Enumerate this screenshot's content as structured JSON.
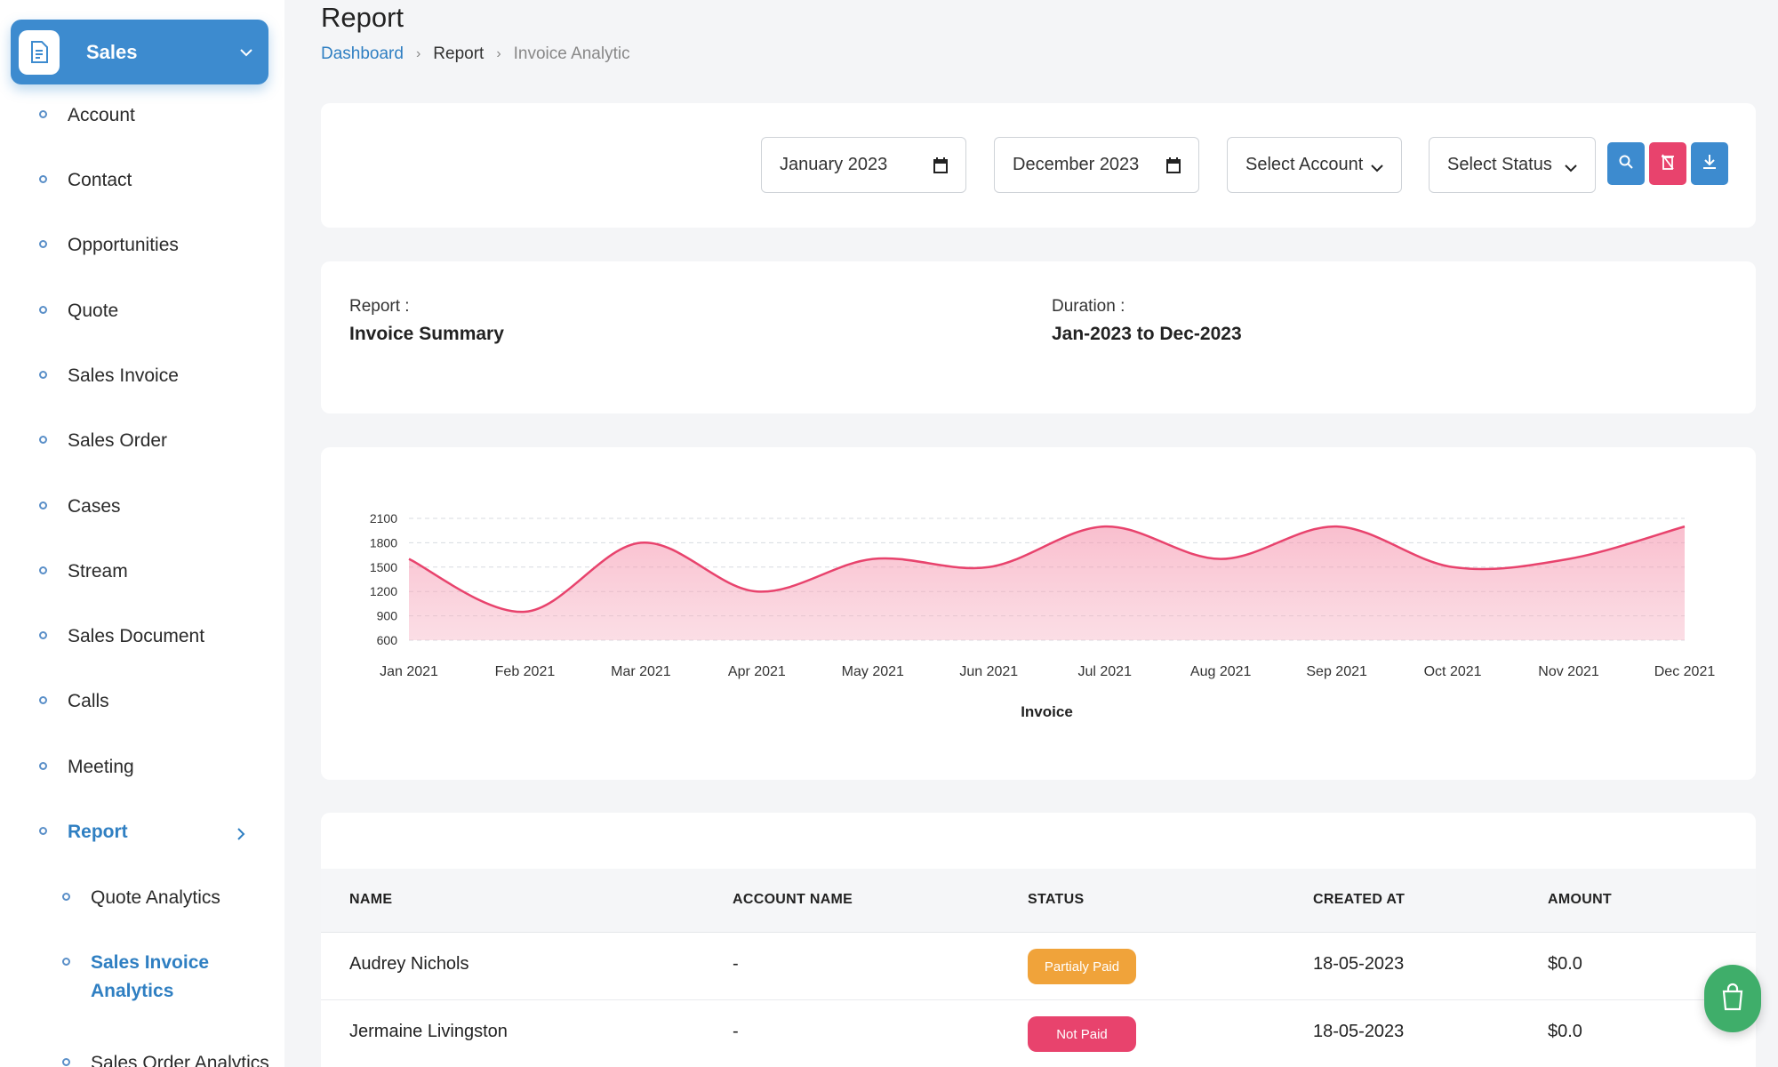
{
  "sidebar": {
    "module": "Sales",
    "items": [
      {
        "label": "Account"
      },
      {
        "label": "Contact"
      },
      {
        "label": "Opportunities"
      },
      {
        "label": "Quote"
      },
      {
        "label": "Sales Invoice"
      },
      {
        "label": "Sales Order"
      },
      {
        "label": "Cases"
      },
      {
        "label": "Stream"
      },
      {
        "label": "Sales Document"
      },
      {
        "label": "Calls"
      },
      {
        "label": "Meeting"
      },
      {
        "label": "Report"
      }
    ],
    "report_sub": [
      {
        "label": "Quote Analytics"
      },
      {
        "label": "Sales Invoice Analytics"
      },
      {
        "label": "Sales Order Analytics"
      }
    ],
    "accent": "#3d8bcf"
  },
  "header": {
    "title": "Report",
    "breadcrumb": [
      "Dashboard",
      "Report",
      "Invoice Analytic"
    ]
  },
  "filters": {
    "start_month": "January 2023",
    "end_month": "December 2023",
    "account_select": "Select Account",
    "status_select": "Select Status"
  },
  "summary": {
    "report_label": "Report :",
    "report_value": "Invoice Summary",
    "duration_label": "Duration :",
    "duration_value": "Jan-2023 to Dec-2023"
  },
  "chart_data": {
    "type": "area",
    "x": [
      "Jan 2021",
      "Feb 2021",
      "Mar 2021",
      "Apr 2021",
      "May 2021",
      "Jun 2021",
      "Jul 2021",
      "Aug 2021",
      "Sep 2021",
      "Oct 2021",
      "Nov 2021",
      "Dec 2021"
    ],
    "y_ticks": [
      600,
      900,
      1200,
      1500,
      1800,
      2100
    ],
    "series": [
      {
        "values": [
          1600,
          950,
          1800,
          1200,
          1600,
          1500,
          2000,
          1600,
          2000,
          1500,
          1600,
          2000
        ],
        "color": "#e8436d"
      }
    ],
    "xlabel": "Invoice",
    "ylim": [
      600,
      2100
    ],
    "grid": true
  },
  "table": {
    "columns": [
      "NAME",
      "ACCOUNT NAME",
      "STATUS",
      "CREATED AT",
      "AMOUNT"
    ],
    "rows": [
      {
        "name": "Audrey Nichols",
        "account": "-",
        "status": "Partialy Paid",
        "created": "18-05-2023",
        "amount": "$0.0"
      },
      {
        "name": "Jermaine Livingston",
        "account": "-",
        "status": "Not Paid",
        "created": "18-05-2023",
        "amount": "$0.0"
      }
    ]
  }
}
